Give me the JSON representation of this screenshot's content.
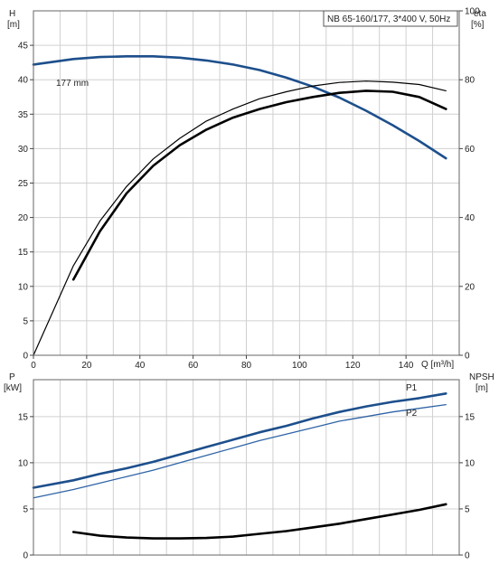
{
  "title": "NB 65-160/177, 3*400 V, 50Hz",
  "colors": {
    "blue": "#1d4f8c",
    "blue_thin": "#2f64a6",
    "black": "#000000",
    "grid": "#d0d0d0"
  },
  "chart_data": [
    {
      "type": "line",
      "panel": "head-efficiency",
      "title": "NB 65-160/177, 3*400 V, 50Hz",
      "x_axis": {
        "label": "Q [m³/h]",
        "range": [
          0,
          160
        ],
        "ticks": [
          0,
          20,
          40,
          60,
          80,
          100,
          120,
          140
        ]
      },
      "left_axis": {
        "label_top": "H",
        "label_unit": "[m]",
        "range": [
          0,
          50
        ],
        "ticks": [
          0,
          5,
          10,
          15,
          20,
          25,
          30,
          35,
          40,
          45
        ]
      },
      "right_axis": {
        "label_top": "eta",
        "label_unit": "[%]",
        "range": [
          0,
          100
        ],
        "ticks": [
          0,
          20,
          40,
          60,
          80,
          100
        ]
      },
      "grid": true,
      "annotation": "177 mm",
      "series": [
        {
          "axis": "left",
          "style": "blue-thick",
          "x": [
            0,
            15,
            25,
            35,
            45,
            55,
            65,
            75,
            85,
            95,
            105,
            115,
            125,
            135,
            145,
            155
          ],
          "y": [
            42.2,
            43.0,
            43.3,
            43.4,
            43.4,
            43.2,
            42.8,
            42.2,
            41.4,
            40.3,
            39.0,
            37.4,
            35.5,
            33.4,
            31.1,
            28.6
          ]
        },
        {
          "axis": "right",
          "style": "black-thin",
          "x": [
            0,
            15,
            25,
            35,
            45,
            55,
            65,
            75,
            85,
            95,
            105,
            115,
            125,
            135,
            145,
            155
          ],
          "y": [
            0,
            26,
            39,
            49,
            57,
            63,
            68,
            71.5,
            74.5,
            76.5,
            78.2,
            79.2,
            79.6,
            79.3,
            78.6,
            76.8
          ]
        },
        {
          "axis": "right",
          "style": "black-thick",
          "x": [
            15,
            25,
            35,
            45,
            55,
            65,
            75,
            85,
            95,
            105,
            115,
            125,
            135,
            145,
            155
          ],
          "y": [
            22,
            36,
            47,
            55,
            61,
            65.5,
            69,
            71.5,
            73.5,
            75,
            76.2,
            76.8,
            76.5,
            75,
            71.5
          ]
        }
      ]
    },
    {
      "type": "line",
      "panel": "power-npsh",
      "x_axis": {
        "range": [
          0,
          160
        ]
      },
      "left_axis": {
        "label_top": "P",
        "label_unit": "[kW]",
        "range": [
          0,
          19
        ],
        "ticks": [
          0,
          5,
          10,
          15
        ]
      },
      "right_axis": {
        "label_top": "NPSH",
        "label_unit": "[m]",
        "range": [
          0,
          19
        ],
        "ticks": [
          0,
          5,
          10,
          15
        ]
      },
      "grid": true,
      "series": [
        {
          "name": "P1",
          "axis": "left",
          "style": "blue-thick",
          "x": [
            0,
            15,
            25,
            35,
            45,
            55,
            65,
            75,
            85,
            95,
            105,
            115,
            125,
            135,
            145,
            155
          ],
          "y": [
            7.3,
            8.1,
            8.8,
            9.4,
            10.1,
            10.9,
            11.7,
            12.5,
            13.3,
            14.0,
            14.8,
            15.5,
            16.1,
            16.6,
            17.0,
            17.5
          ]
        },
        {
          "name": "P2",
          "axis": "left",
          "style": "blue-thin",
          "x": [
            0,
            15,
            25,
            35,
            45,
            55,
            65,
            75,
            85,
            95,
            105,
            115,
            125,
            135,
            145,
            155
          ],
          "y": [
            6.2,
            7.1,
            7.8,
            8.5,
            9.2,
            10.0,
            10.8,
            11.6,
            12.4,
            13.1,
            13.8,
            14.5,
            15.0,
            15.5,
            15.9,
            16.3
          ]
        },
        {
          "axis": "right",
          "style": "black-thick",
          "x": [
            15,
            25,
            35,
            45,
            55,
            65,
            75,
            85,
            95,
            105,
            115,
            125,
            135,
            145,
            155
          ],
          "y": [
            2.5,
            2.1,
            1.9,
            1.8,
            1.8,
            1.85,
            2.0,
            2.3,
            2.6,
            3.0,
            3.4,
            3.9,
            4.4,
            4.9,
            5.5
          ]
        }
      ]
    }
  ]
}
